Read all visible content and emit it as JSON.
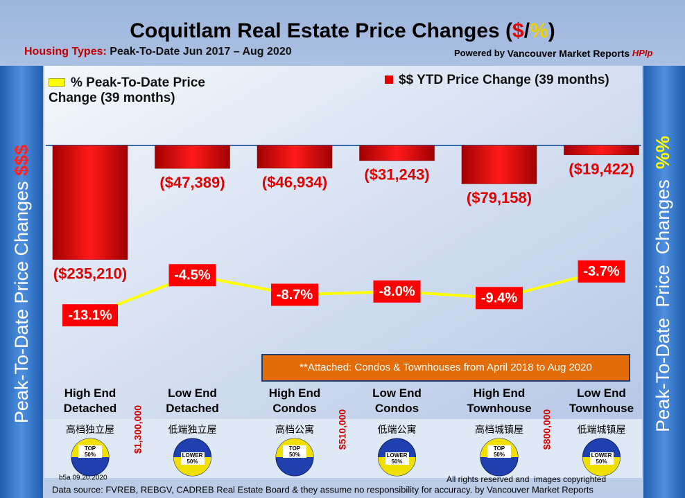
{
  "title_parts": [
    "Coquitlam Real Estate Price Changes (",
    "$",
    "/",
    "%",
    ")"
  ],
  "subtitle_label": "Housing Types:",
  "subtitle": "Peak-To-Date Jun 2017 – Aug 2020",
  "powered_by": [
    "Powered by",
    "Vancouver Market Reports",
    "HPIp"
  ],
  "chart_data": {
    "type": "bar",
    "categories": [
      "High End Detached",
      "Low End Detached",
      "High End Condos",
      "Low End Condos",
      "High End Townhouse",
      "Low End Townhouse"
    ],
    "categories_zh": [
      "高档独立屋",
      "低端独立屋",
      "高档公寓",
      "低端公寓",
      "高档城镇屋",
      "低端城镇屋"
    ],
    "series": [
      {
        "name": "$$ YTD Price Change (39 months)",
        "type": "bar",
        "color": "#e00000",
        "values": [
          -235210,
          -47389,
          -46934,
          -31243,
          -79158,
          -19422
        ],
        "value_labels": [
          "($235,210)",
          "($47,389)",
          "($46,934)",
          "($31,243)",
          "($79,158)",
          "($19,422)"
        ]
      },
      {
        "name": "% Peak-To-Date Price Change (39 months)",
        "type": "line",
        "axis": "y2",
        "color": "#ffff00",
        "values": [
          -13.1,
          -4.5,
          -8.7,
          -8.0,
          -9.4,
          -3.7
        ],
        "value_labels": [
          "-13.1%",
          "-4.5%",
          "-8.7%",
          "-8.0%",
          "-9.4%",
          "-3.7%"
        ]
      }
    ],
    "ylim": [
      -300000,
      0
    ],
    "y2lim": [
      -15,
      0
    ],
    "y_label": "Peak-To-Date Price Changes",
    "y_label_symbol": "$$$",
    "y2_label": "Peak-To-Date  Price  Changes",
    "y2_label_symbol": "%%",
    "note": "**Attached: Condos & Townhouses from April 2018 to Aug 2020",
    "price_thresholds": [
      "$1,300,000",
      "$510,000",
      "$800,000"
    ],
    "badges": [
      "TOP 50%",
      "LOWER 50%",
      "TOP 50%",
      "LOWER 50%",
      "TOP 50%",
      "LOWER 50%"
    ]
  },
  "footer_code": "b5a 09.20.2020",
  "rights": "All rights reserved and  images copyrighted",
  "source": "Data source: FVREB, REBGV, CADREB Real Estate Board & they assume no responsibility for accuracy. by Vancouver Market Reports"
}
